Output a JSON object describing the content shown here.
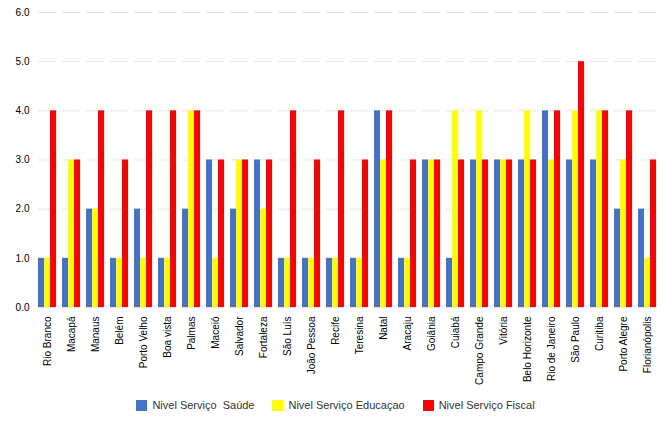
{
  "chart_data": {
    "type": "bar",
    "categories": [
      "Rio Branco",
      "Macapá",
      "Manaus",
      "Belém",
      "Porto Velho",
      "Boa vista",
      "Palmas",
      "Maceió",
      "Salvador",
      "Fortaleza",
      "São Luís",
      "João Pessoa",
      "Recife",
      "Teresina",
      "Natal",
      "Aracaju",
      "Goiânia",
      "Cuiabá",
      "Campo Grande",
      "Vitória",
      "Belo Horizonte",
      "Rio de Janeiro",
      "São Paulo",
      "Curitiba",
      "Porto Alegre",
      "Florianópolis"
    ],
    "series": [
      {
        "name": "Nivel Serviço  Saúde",
        "color": "#4472C4",
        "values": [
          1,
          1,
          2,
          1,
          2,
          1,
          2,
          3,
          2,
          3,
          1,
          1,
          1,
          1,
          4,
          1,
          3,
          1,
          3,
          3,
          3,
          4,
          3,
          3,
          2,
          2
        ]
      },
      {
        "name": "Nivel Serviço Educaçao",
        "color": "#FFFF00",
        "values": [
          1,
          3,
          2,
          1,
          1,
          1,
          4,
          1,
          3,
          2,
          1,
          1,
          1,
          1,
          3,
          1,
          3,
          4,
          4,
          3,
          4,
          3,
          4,
          4,
          3,
          1
        ]
      },
      {
        "name": "Nivel Serviço Fiscal",
        "color": "#FF0000",
        "values": [
          4,
          3,
          4,
          3,
          4,
          4,
          4,
          3,
          3,
          3,
          4,
          3,
          4,
          3,
          4,
          3,
          3,
          3,
          3,
          3,
          3,
          4,
          5,
          4,
          4,
          3
        ]
      }
    ],
    "ylim": [
      0,
      6
    ],
    "yticks": [
      0,
      1,
      2,
      3,
      4,
      5,
      6
    ],
    "grid": true,
    "legend": "bottom"
  }
}
